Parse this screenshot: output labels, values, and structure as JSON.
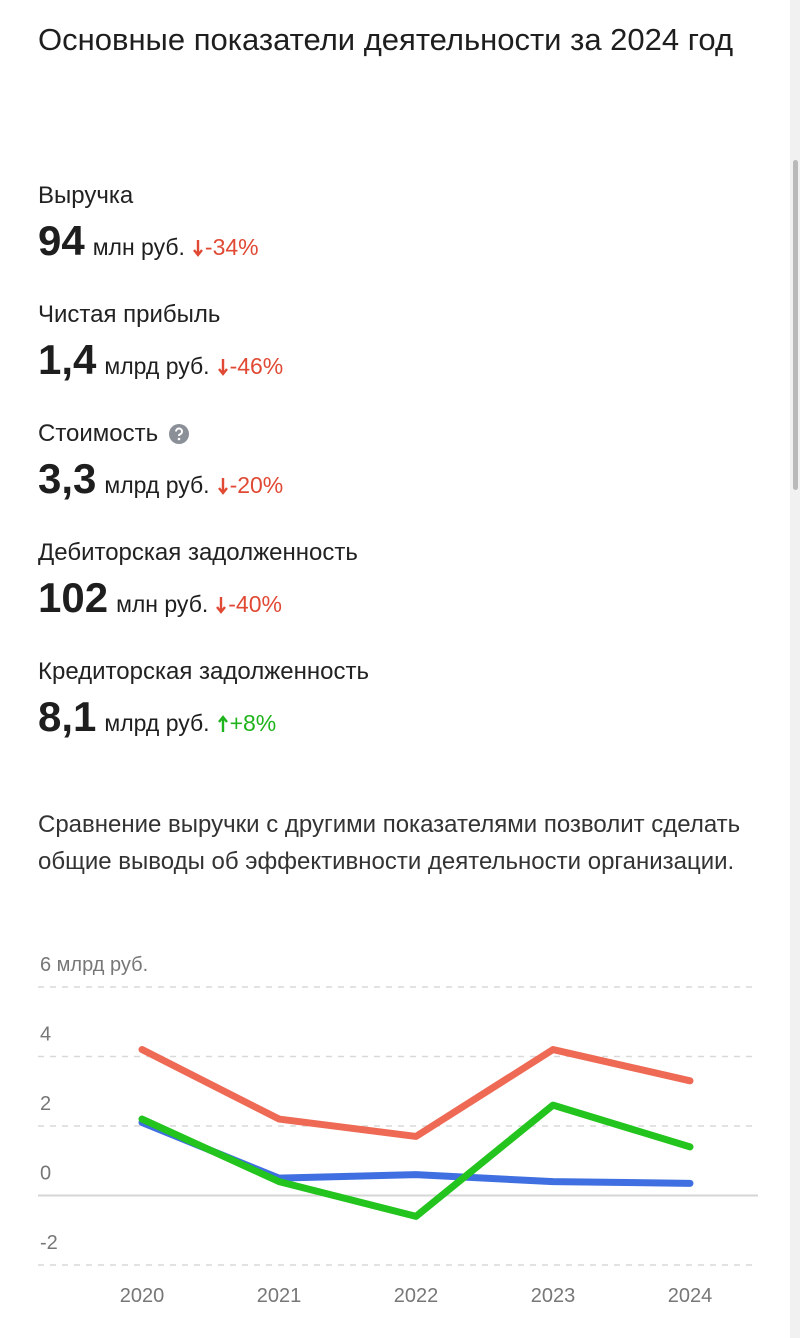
{
  "header": {
    "title": "Основные показатели деятельности за 2024 год"
  },
  "metrics": [
    {
      "label": "Выручка",
      "value": "94",
      "unit": "млн руб.",
      "change": "-34%",
      "direction": "down"
    },
    {
      "label": "Чистая прибыль",
      "value": "1,4",
      "unit": "млрд руб.",
      "change": "-46%",
      "direction": "down"
    },
    {
      "label": "Стоимость",
      "value": "3,3",
      "unit": "млрд руб.",
      "change": "-20%",
      "direction": "down",
      "help": true
    },
    {
      "label": "Дебиторская задолженность",
      "value": "102",
      "unit": "млн руб.",
      "change": "-40%",
      "direction": "down"
    },
    {
      "label": "Кредиторская задолженность",
      "value": "8,1",
      "unit": "млрд руб.",
      "change": "+8%",
      "direction": "up"
    }
  ],
  "description": "Сравнение выручки с другими показателями позволит сделать общие выводы об эффективности деятельности организации.",
  "chart_data": {
    "type": "line",
    "categories": [
      "2020",
      "2021",
      "2022",
      "2023",
      "2024"
    ],
    "series": [
      {
        "color": "#ee6a55",
        "values": [
          4.2,
          2.2,
          1.7,
          4.2,
          3.3
        ]
      },
      {
        "color": "#3f6fe0",
        "values": [
          2.1,
          0.5,
          0.6,
          0.4,
          0.35
        ]
      },
      {
        "color": "#22c41d",
        "values": [
          2.2,
          0.4,
          -0.6,
          2.6,
          1.4
        ]
      }
    ],
    "ylim": [
      -2,
      6
    ],
    "yticks": [
      -2,
      0,
      2,
      4,
      {
        "value": 6,
        "label": "6 млрд руб."
      }
    ],
    "grid": true
  }
}
